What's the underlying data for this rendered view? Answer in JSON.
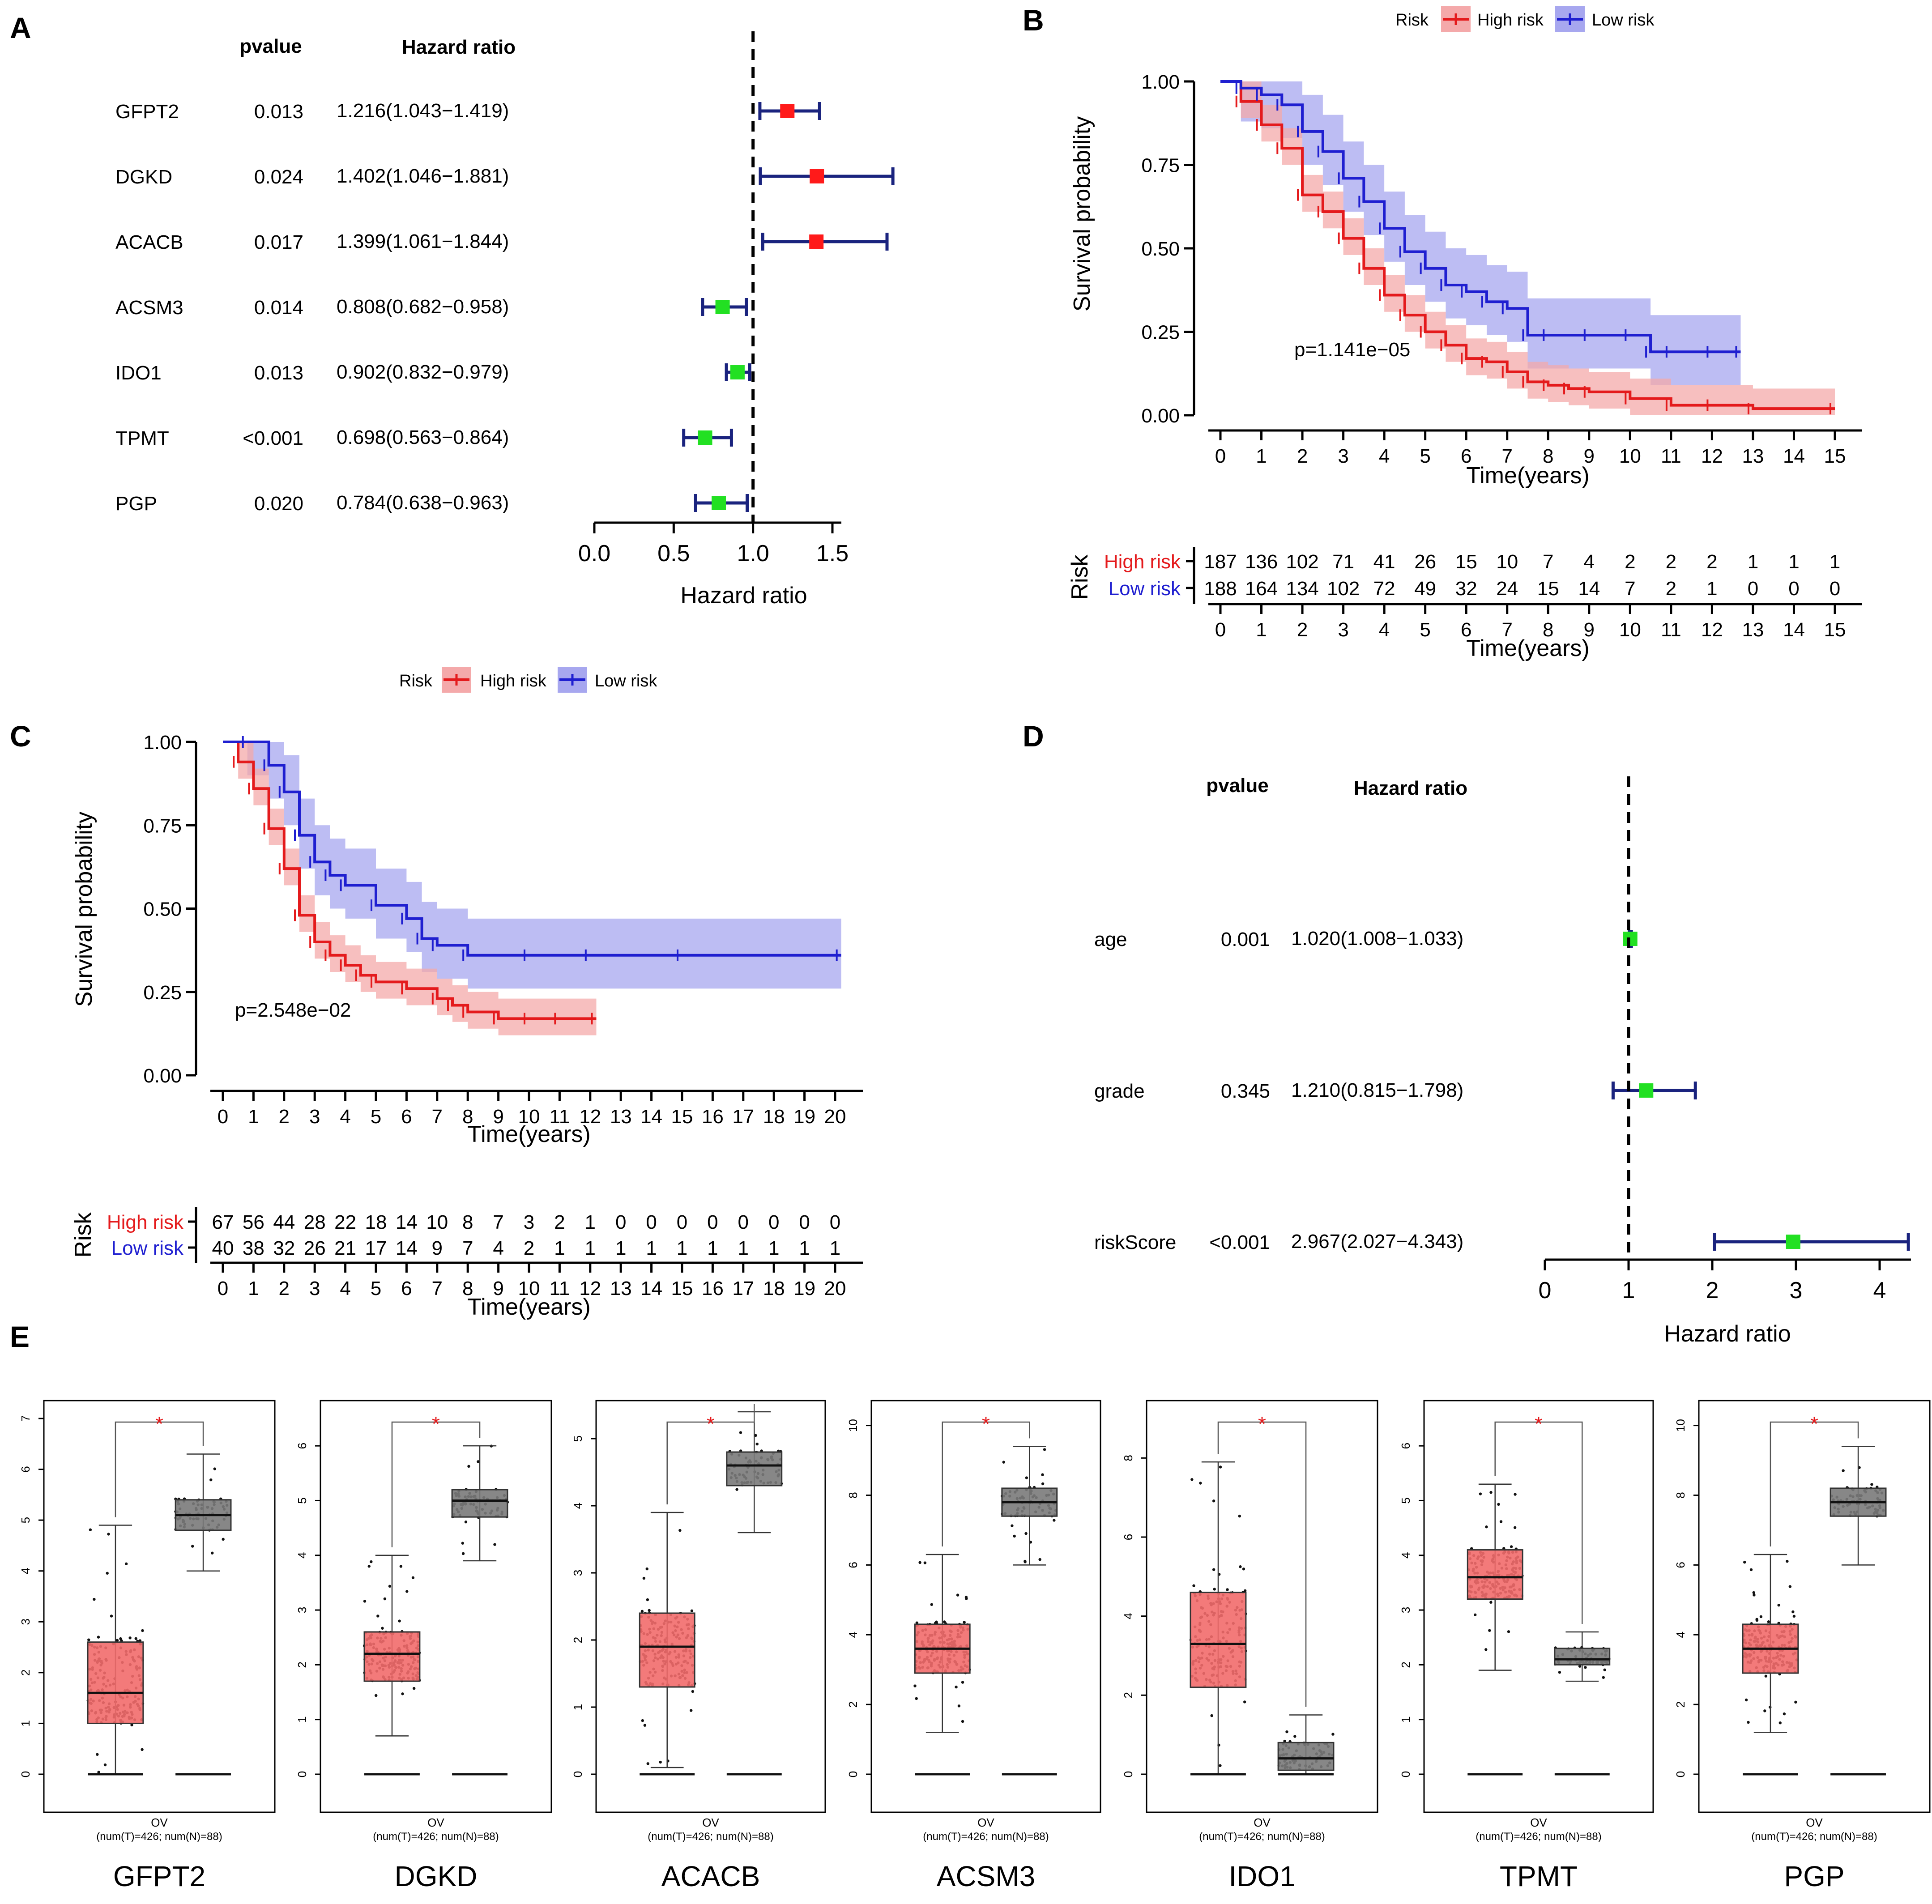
{
  "colors": {
    "high": "#e41a1c",
    "high_fill": "#f4a9aa",
    "low": "#1f1fd0",
    "low_fill": "#a7a7ef",
    "forest_line": "#1a237e",
    "forest_harm": "#ff1a1a",
    "forest_prot": "#22e022",
    "box_tumor": "#f26b6b",
    "box_normal": "#7a7a7a",
    "sig": "#e41a1c"
  },
  "panels": {
    "A": {
      "label": "A",
      "col_pvalue": "pvalue",
      "col_hr": "Hazard ratio",
      "xlabel": "Hazard ratio",
      "ticks": [
        "0.0",
        "0.5",
        "1.0",
        "1.5"
      ],
      "rows": [
        {
          "gene": "GFPT2",
          "pvalue": "0.013",
          "hr_text": "1.216(1.043−1.419)",
          "hr": 1.216,
          "lo": 1.043,
          "hi": 1.419
        },
        {
          "gene": "DGKD",
          "pvalue": "0.024",
          "hr_text": "1.402(1.046−1.881)",
          "hr": 1.402,
          "lo": 1.046,
          "hi": 1.881
        },
        {
          "gene": "ACACB",
          "pvalue": "0.017",
          "hr_text": "1.399(1.061−1.844)",
          "hr": 1.399,
          "lo": 1.061,
          "hi": 1.844
        },
        {
          "gene": "ACSM3",
          "pvalue": "0.014",
          "hr_text": "0.808(0.682−0.958)",
          "hr": 0.808,
          "lo": 0.682,
          "hi": 0.958
        },
        {
          "gene": "IDO1",
          "pvalue": "0.013",
          "hr_text": "0.902(0.832−0.979)",
          "hr": 0.902,
          "lo": 0.832,
          "hi": 0.979
        },
        {
          "gene": "TPMT",
          "pvalue": "<0.001",
          "hr_text": "0.698(0.563−0.864)",
          "hr": 0.698,
          "lo": 0.563,
          "hi": 0.864
        },
        {
          "gene": "PGP",
          "pvalue": "0.020",
          "hr_text": "0.784(0.638−0.963)",
          "hr": 0.784,
          "lo": 0.638,
          "hi": 0.963
        }
      ]
    },
    "B": {
      "label": "B",
      "legend_title": "Risk",
      "legend_high": "High risk",
      "legend_low": "Low risk",
      "ylabel": "Survival probability",
      "xlabel": "Time(years)",
      "pvalue": "p=1.141e−05",
      "yticks": [
        "0.00",
        "0.25",
        "0.50",
        "0.75",
        "1.00"
      ],
      "xticks": [
        "0",
        "1",
        "2",
        "3",
        "4",
        "5",
        "6",
        "7",
        "8",
        "9",
        "10",
        "11",
        "12",
        "13",
        "14",
        "15"
      ],
      "table_title": "Risk",
      "table_high_label": "High risk",
      "table_low_label": "Low risk",
      "table_high": [
        "187",
        "136",
        "102",
        "71",
        "41",
        "26",
        "15",
        "10",
        "7",
        "4",
        "2",
        "2",
        "2",
        "1",
        "1",
        "1"
      ],
      "table_low": [
        "188",
        "164",
        "134",
        "102",
        "72",
        "49",
        "32",
        "24",
        "15",
        "14",
        "7",
        "2",
        "1",
        "0",
        "0",
        "0"
      ],
      "table_xlabel": "Time(years)"
    },
    "C": {
      "label": "C",
      "legend_title": "Risk",
      "legend_high": "High risk",
      "legend_low": "Low risk",
      "ylabel": "Survival probability",
      "xlabel": "Time(years)",
      "pvalue": "p=2.548e−02",
      "yticks": [
        "0.00",
        "0.25",
        "0.50",
        "0.75",
        "1.00"
      ],
      "xticks": [
        "0",
        "1",
        "2",
        "3",
        "4",
        "5",
        "6",
        "7",
        "8",
        "9",
        "10",
        "11",
        "12",
        "13",
        "14",
        "15",
        "16",
        "17",
        "18",
        "19",
        "20"
      ],
      "table_title": "Risk",
      "table_high_label": "High risk",
      "table_low_label": "Low risk",
      "table_high": [
        "67",
        "56",
        "44",
        "28",
        "22",
        "18",
        "14",
        "10",
        "8",
        "7",
        "3",
        "2",
        "1",
        "0",
        "0",
        "0",
        "0",
        "0",
        "0",
        "0",
        "0"
      ],
      "table_low": [
        "40",
        "38",
        "32",
        "26",
        "21",
        "17",
        "14",
        "9",
        "7",
        "4",
        "2",
        "1",
        "1",
        "1",
        "1",
        "1",
        "1",
        "1",
        "1",
        "1",
        "1"
      ],
      "table_xlabel": "Time(years)"
    },
    "D": {
      "label": "D",
      "col_pvalue": "pvalue",
      "col_hr": "Hazard ratio",
      "xlabel": "Hazard ratio",
      "ticks": [
        "0",
        "1",
        "2",
        "3",
        "4"
      ],
      "rows": [
        {
          "gene": "age",
          "pvalue": "0.001",
          "hr_text": "1.020(1.008−1.033)",
          "hr": 1.02,
          "lo": 1.008,
          "hi": 1.033
        },
        {
          "gene": "grade",
          "pvalue": "0.345",
          "hr_text": "1.210(0.815−1.798)",
          "hr": 1.21,
          "lo": 0.815,
          "hi": 1.798
        },
        {
          "gene": "riskScore",
          "pvalue": "<0.001",
          "hr_text": "2.967(2.027−4.343)",
          "hr": 2.967,
          "lo": 2.027,
          "hi": 4.343
        }
      ]
    },
    "E": {
      "label": "E",
      "sig_mark": "*",
      "dataset": "OV",
      "sample_text": "(num(T)=426; num(N)=88)",
      "boxes": [
        {
          "gene": "GFPT2",
          "yticks": [
            "0",
            "1",
            "2",
            "3",
            "4",
            "5",
            "6",
            "7"
          ],
          "ymax": 7,
          "tumor": [
            0,
            1.0,
            1.6,
            2.6,
            4.9
          ],
          "normal": [
            4.0,
            4.8,
            5.1,
            5.4,
            6.3
          ],
          "tumor_low": 0,
          "normal_low": 0
        },
        {
          "gene": "DGKD",
          "yticks": [
            "0",
            "1",
            "2",
            "3",
            "4",
            "5",
            "6"
          ],
          "ymax": 6.5,
          "tumor": [
            0.7,
            1.7,
            2.2,
            2.6,
            4.0
          ],
          "normal": [
            3.9,
            4.7,
            5.0,
            5.2,
            6.0
          ],
          "tumor_low": 0,
          "normal_low": 0
        },
        {
          "gene": "ACACB",
          "yticks": [
            "0",
            "1",
            "2",
            "3",
            "4",
            "5"
          ],
          "ymax": 5.3,
          "tumor": [
            0.1,
            1.3,
            1.9,
            2.4,
            3.9
          ],
          "normal": [
            3.6,
            4.3,
            4.6,
            4.8,
            5.4
          ],
          "tumor_low": 0,
          "normal_low": 0
        },
        {
          "gene": "ACSM3",
          "yticks": [
            "0",
            "2",
            "4",
            "6",
            "8",
            "10"
          ],
          "ymax": 10.2,
          "tumor": [
            1.2,
            2.9,
            3.6,
            4.3,
            6.3
          ],
          "normal": [
            6.0,
            7.4,
            7.8,
            8.2,
            9.4
          ],
          "tumor_low": 0,
          "normal_low": 0
        },
        {
          "gene": "IDO1",
          "yticks": [
            "0",
            "2",
            "4",
            "6",
            "8"
          ],
          "ymax": 9,
          "tumor": [
            0.0,
            2.2,
            3.3,
            4.6,
            7.9
          ],
          "normal": [
            0.0,
            0.1,
            0.4,
            0.8,
            1.5
          ],
          "tumor_low": 0,
          "normal_low": 0
        },
        {
          "gene": "TPMT",
          "yticks": [
            "0",
            "1",
            "2",
            "3",
            "4",
            "5",
            "6"
          ],
          "ymax": 6.5,
          "tumor": [
            1.9,
            3.2,
            3.6,
            4.1,
            5.3
          ],
          "normal": [
            1.7,
            2.0,
            2.1,
            2.3,
            2.6
          ],
          "tumor_low": 0,
          "normal_low": 0
        },
        {
          "gene": "PGP",
          "yticks": [
            "0",
            "2",
            "4",
            "6",
            "8",
            "10"
          ],
          "ymax": 10.2,
          "tumor": [
            1.2,
            2.9,
            3.6,
            4.3,
            6.3
          ],
          "normal": [
            6.0,
            7.4,
            7.8,
            8.2,
            9.4
          ],
          "tumor_low": 0,
          "normal_low": 0
        }
      ]
    }
  },
  "chart_data": [
    {
      "type": "forest",
      "panel": "A",
      "xlabel": "Hazard ratio",
      "xlim": [
        0,
        1.5
      ],
      "reference_line": 1.0,
      "categories": [
        "GFPT2",
        "DGKD",
        "ACACB",
        "ACSM3",
        "IDO1",
        "TPMT",
        "PGP"
      ],
      "hr": [
        1.216,
        1.402,
        1.399,
        0.808,
        0.902,
        0.698,
        0.784
      ],
      "lower": [
        1.043,
        1.046,
        1.061,
        0.682,
        0.832,
        0.563,
        0.638
      ],
      "upper": [
        1.419,
        1.881,
        1.844,
        0.958,
        0.979,
        0.864,
        0.963
      ],
      "pvalue": [
        "0.013",
        "0.024",
        "0.017",
        "0.014",
        "0.013",
        "<0.001",
        "0.020"
      ]
    },
    {
      "type": "line",
      "panel": "B",
      "subtype": "kaplan-meier",
      "title": "",
      "xlabel": "Time(years)",
      "ylabel": "Survival probability",
      "xlim": [
        0,
        15
      ],
      "ylim": [
        0,
        1
      ],
      "annotation": "p=1.141e−05",
      "series": [
        {
          "name": "High risk",
          "x": [
            0,
            0.5,
            1,
            1.5,
            2,
            2.5,
            3,
            3.5,
            4,
            4.5,
            5,
            5.5,
            6,
            6.5,
            7,
            7.5,
            8,
            8.5,
            9,
            10,
            11,
            12,
            13,
            15
          ],
          "y": [
            1.0,
            0.94,
            0.87,
            0.8,
            0.66,
            0.61,
            0.53,
            0.44,
            0.36,
            0.3,
            0.25,
            0.21,
            0.17,
            0.16,
            0.13,
            0.1,
            0.09,
            0.08,
            0.07,
            0.05,
            0.03,
            0.03,
            0.02,
            0.02
          ]
        },
        {
          "name": "Low risk",
          "x": [
            0,
            0.5,
            1,
            1.5,
            2,
            2.5,
            3,
            3.5,
            4,
            4.5,
            5,
            5.5,
            6,
            6.5,
            7,
            7.5,
            8,
            9,
            10,
            10.5,
            11,
            12,
            12.7
          ],
          "y": [
            1.0,
            0.98,
            0.96,
            0.93,
            0.85,
            0.79,
            0.71,
            0.64,
            0.56,
            0.49,
            0.44,
            0.39,
            0.37,
            0.34,
            0.32,
            0.24,
            0.24,
            0.24,
            0.24,
            0.19,
            0.19,
            0.19,
            0.19
          ]
        }
      ]
    },
    {
      "type": "line",
      "panel": "C",
      "subtype": "kaplan-meier",
      "title": "",
      "xlabel": "Time(years)",
      "ylabel": "Survival probability",
      "xlim": [
        0,
        20
      ],
      "ylim": [
        0,
        1
      ],
      "annotation": "p=2.548e−02",
      "series": [
        {
          "name": "High risk",
          "x": [
            0,
            0.5,
            1,
            1.5,
            2,
            2.5,
            3,
            3.5,
            4,
            4.5,
            5,
            6,
            7,
            7.5,
            8,
            9,
            10,
            11,
            12.2
          ],
          "y": [
            1.0,
            0.94,
            0.86,
            0.74,
            0.62,
            0.48,
            0.4,
            0.36,
            0.33,
            0.3,
            0.28,
            0.26,
            0.23,
            0.21,
            0.19,
            0.17,
            0.17,
            0.17,
            0.17
          ]
        },
        {
          "name": "Low risk",
          "x": [
            0,
            0.8,
            1.5,
            2,
            2.5,
            3,
            3.5,
            4,
            5,
            6,
            6.5,
            7,
            8,
            10,
            12,
            15,
            20.2
          ],
          "y": [
            1.0,
            1.0,
            0.93,
            0.85,
            0.72,
            0.64,
            0.6,
            0.57,
            0.51,
            0.47,
            0.41,
            0.39,
            0.36,
            0.36,
            0.36,
            0.36,
            0.36
          ]
        }
      ]
    },
    {
      "type": "forest",
      "panel": "D",
      "xlabel": "Hazard ratio",
      "xlim": [
        0,
        4
      ],
      "reference_line": 1,
      "categories": [
        "age",
        "grade",
        "riskScore"
      ],
      "hr": [
        1.02,
        1.21,
        2.967
      ],
      "lower": [
        1.008,
        0.815,
        2.027
      ],
      "upper": [
        1.033,
        1.798,
        4.343
      ],
      "pvalue": [
        "0.001",
        "0.345",
        "<0.001"
      ]
    },
    {
      "type": "box",
      "panel": "E",
      "dataset": "OV",
      "groups": [
        "Tumor (num(T)=426)",
        "Normal (num(N)=88)"
      ],
      "categories": [
        "GFPT2",
        "DGKD",
        "ACACB",
        "ACSM3",
        "IDO1",
        "TPMT",
        "PGP"
      ],
      "tumor_median": [
        1.6,
        2.2,
        1.9,
        3.6,
        3.3,
        3.6,
        3.6
      ],
      "normal_median": [
        5.1,
        5.0,
        4.6,
        7.8,
        0.4,
        2.1,
        7.8
      ]
    }
  ]
}
